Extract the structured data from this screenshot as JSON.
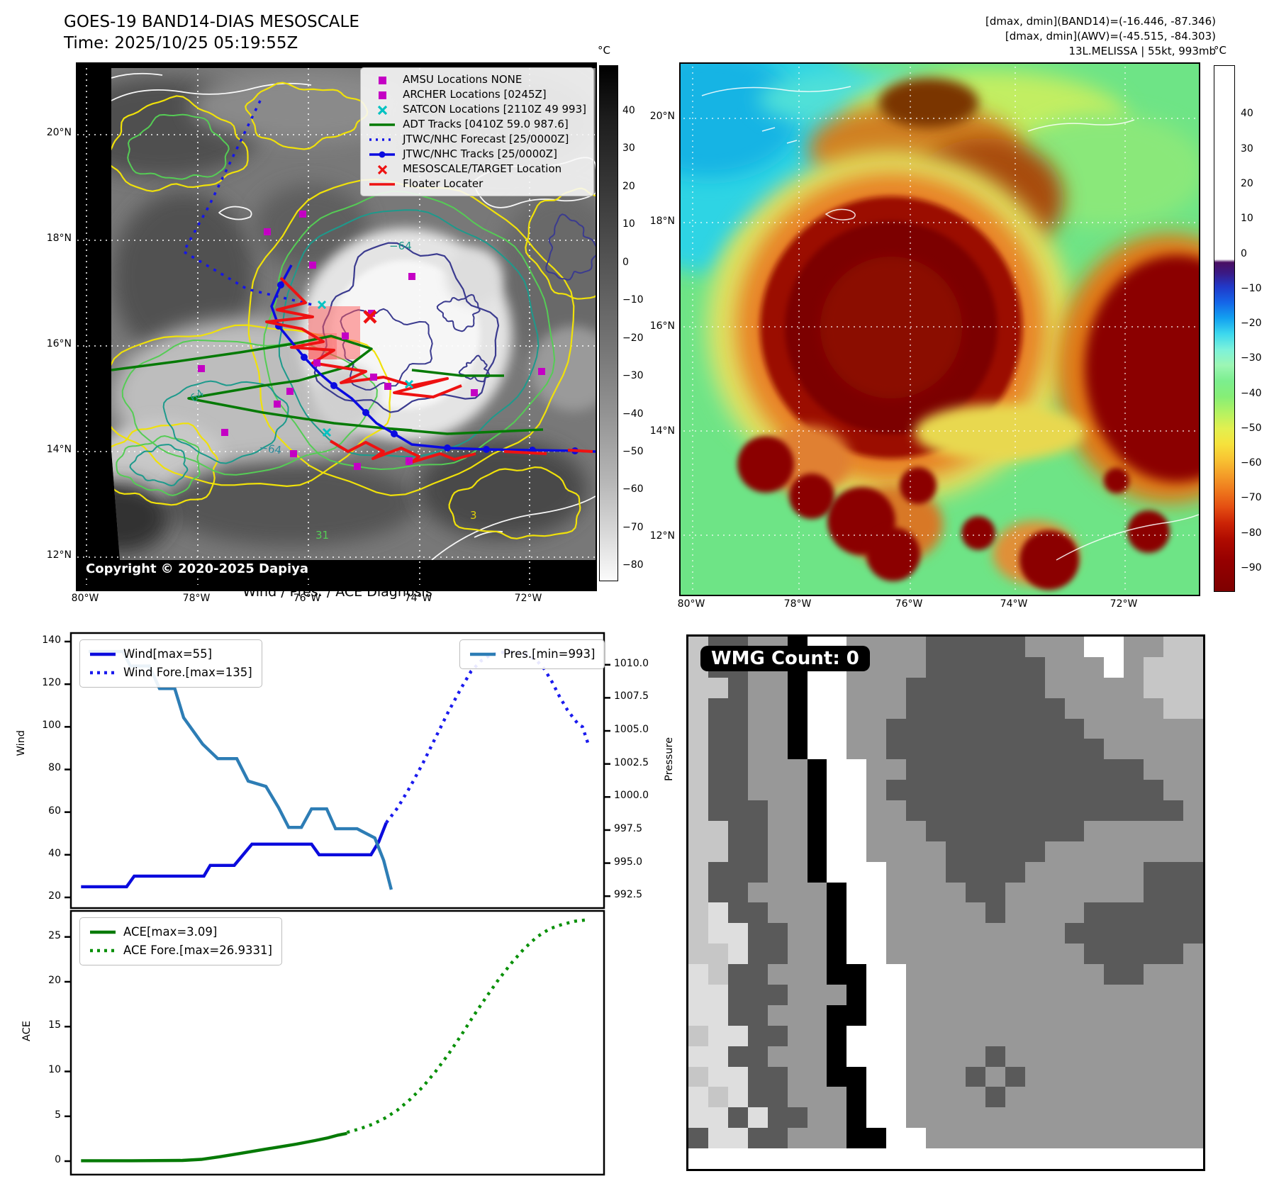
{
  "header": {
    "left_title": "GOES-19 BAND14-DIAS MESOSCALE",
    "left_time": "Time: 2025/10/25 05:19:55Z",
    "right_line1": "[dmax, dmin](BAND14)=(-16.446, -87.346)",
    "right_line2": "[dmax, dmin](AWV)=(-45.515, -84.303)",
    "right_line3": "13L.MELISSA | 55kt, 993mb"
  },
  "band14_map": {
    "x_ticks": [
      "80°W",
      "78°W",
      "76°W",
      "74°W",
      "72°W"
    ],
    "y_ticks": [
      "20°N",
      "18°N",
      "16°N",
      "14°N",
      "12°N"
    ],
    "copyright": "Copyright © 2020-2025 Dapiya",
    "legend": [
      {
        "marker": "square",
        "color": "#c400c4",
        "label": "AMSU Locations NONE"
      },
      {
        "marker": "square",
        "color": "#c400c4",
        "label": "ARCHER Locations [0245Z]"
      },
      {
        "marker": "x",
        "color": "#00c2c2",
        "label": "SATCON Locations [2110Z 49 993]"
      },
      {
        "marker": "line",
        "color": "#067a06",
        "label": "ADT Tracks [0410Z 59.0 987.6]"
      },
      {
        "marker": "dotted",
        "color": "#1515e8",
        "label": "JTWC/NHC Forecast [25/0000Z]"
      },
      {
        "marker": "linedot",
        "color": "#0b0be0",
        "label": "JTWC/NHC Tracks [25/0000Z]"
      },
      {
        "marker": "x",
        "color": "#ee1212",
        "label": "MESOSCALE/TARGET Location"
      },
      {
        "marker": "line",
        "color": "#ee1212",
        "label": "Floater Locater"
      }
    ],
    "contour_labels": [
      {
        "text": "−64",
        "color": "#1d9a8c"
      },
      {
        "text": "64",
        "color": "#1d9a8c"
      },
      {
        "text": "−64",
        "color": "#2e8b9b"
      },
      {
        "text": "31",
        "color": "#55cc55"
      },
      {
        "text": "2",
        "color": "#cc00cc"
      },
      {
        "text": "3",
        "color": "#e0d00a"
      }
    ],
    "colorbar": {
      "title": "°C",
      "ticks": [
        "40",
        "30",
        "20",
        "10",
        "0",
        "−10",
        "−20",
        "−30",
        "−40",
        "−50",
        "−60",
        "−70",
        "−80"
      ]
    }
  },
  "awv_map": {
    "x_ticks": [
      "80°W",
      "78°W",
      "76°W",
      "74°W",
      "72°W"
    ],
    "y_ticks": [
      "20°N",
      "18°N",
      "16°N",
      "14°N",
      "12°N"
    ],
    "colorbar": {
      "title": "°C",
      "ticks": [
        "40",
        "30",
        "20",
        "10",
        "0",
        "−10",
        "−20",
        "−30",
        "−40",
        "−50",
        "−60",
        "−70",
        "−80",
        "−90"
      ]
    }
  },
  "diagnosis_title": "Wind / Pres. / ACE Diagnosis",
  "chart_data": [
    {
      "type": "line",
      "panel": "wind_pressure",
      "title": "Wind / Pres. / ACE Diagnosis",
      "xlim": [
        -0.8,
        41.3
      ],
      "grid": false,
      "left_axis": {
        "label": "Wind",
        "ylim": [
          15,
          144
        ],
        "tick_values": [
          140,
          120,
          100,
          80,
          60,
          40,
          20
        ],
        "tick_labels": [
          "140",
          "120",
          "100",
          "80",
          "60",
          "40",
          "20"
        ]
      },
      "right_axis": {
        "label": "Pressure",
        "ylim": [
          991.6,
          1012.4
        ],
        "tick_values": [
          1010.0,
          1007.5,
          1005.0,
          1002.5,
          1000.0,
          997.5,
          995.0,
          992.5
        ],
        "tick_labels": [
          "1010.0",
          "1007.5",
          "1005.0",
          "1002.5",
          "1000.0",
          "997.5",
          "995.0",
          "992.5"
        ]
      },
      "series": [
        {
          "name": "Wind[max=55]",
          "style": "solid",
          "color": "#0b0bdd",
          "axis": "left",
          "legend": "upper-left",
          "points": [
            [
              0,
              25
            ],
            [
              3.6,
              25
            ],
            [
              4.2,
              30
            ],
            [
              9.7,
              30
            ],
            [
              10.2,
              35
            ],
            [
              12.1,
              35
            ],
            [
              13.5,
              45
            ],
            [
              18.2,
              45
            ],
            [
              18.8,
              40
            ],
            [
              22.9,
              40
            ],
            [
              23.5,
              46
            ],
            [
              24.1,
              55
            ]
          ]
        },
        {
          "name": "Wind Fore.[max=135]",
          "style": "dotted",
          "color": "#1a1aee",
          "axis": "left",
          "legend": "upper-left",
          "points": [
            [
              24.1,
              55
            ],
            [
              25,
              62
            ],
            [
              26,
              72
            ],
            [
              27,
              83
            ],
            [
              28,
              95
            ],
            [
              29,
              107
            ],
            [
              30,
              118
            ],
            [
              30.8,
              126
            ],
            [
              31.6,
              131
            ],
            [
              32.4,
              134
            ],
            [
              33.4,
              135
            ],
            [
              34.4,
              135
            ],
            [
              35.2,
              134
            ],
            [
              36,
              131
            ],
            [
              36.6,
              127
            ],
            [
              37.2,
              121
            ],
            [
              37.8,
              114
            ],
            [
              38.4,
              108
            ],
            [
              38.9,
              104
            ],
            [
              39.3,
              101
            ],
            [
              39.6,
              100
            ],
            [
              40.1,
              91
            ]
          ]
        },
        {
          "name": "Pres.[min=993]",
          "style": "solid",
          "color": "#2d7db5",
          "axis": "right",
          "legend": "upper-right",
          "points": [
            [
              0.6,
              1011
            ],
            [
              3.3,
              1011
            ],
            [
              3.9,
              1009.9
            ],
            [
              5.4,
              1009.9
            ],
            [
              6.2,
              1008.2
            ],
            [
              7.4,
              1008.2
            ],
            [
              8.1,
              1006
            ],
            [
              9.6,
              1004
            ],
            [
              10.8,
              1002.9
            ],
            [
              12.3,
              1002.9
            ],
            [
              13.2,
              1001.2
            ],
            [
              14.6,
              1000.8
            ],
            [
              15.6,
              999.2
            ],
            [
              16.4,
              997.7
            ],
            [
              17.4,
              997.7
            ],
            [
              18.2,
              999.1
            ],
            [
              19.4,
              999.1
            ],
            [
              20.1,
              997.6
            ],
            [
              21.8,
              997.6
            ],
            [
              23.2,
              996.9
            ],
            [
              23.9,
              995.2
            ],
            [
              24.5,
              993
            ]
          ]
        }
      ]
    },
    {
      "type": "line",
      "panel": "ace",
      "xlim": [
        -0.8,
        41.3
      ],
      "grid": false,
      "left_axis": {
        "label": "ACE",
        "ylim": [
          -1.5,
          27.9
        ],
        "tick_values": [
          25,
          20,
          15,
          10,
          5,
          0
        ],
        "tick_labels": [
          "25",
          "20",
          "15",
          "10",
          "5",
          "0"
        ]
      },
      "series": [
        {
          "name": "ACE[max=3.09]",
          "style": "solid",
          "color": "#067a06",
          "axis": "left",
          "legend": "upper-left",
          "points": [
            [
              0,
              0.05
            ],
            [
              4,
              0.05
            ],
            [
              8,
              0.08
            ],
            [
              9.5,
              0.2
            ],
            [
              11,
              0.5
            ],
            [
              12.5,
              0.85
            ],
            [
              14,
              1.2
            ],
            [
              15.5,
              1.55
            ],
            [
              17,
              1.9
            ],
            [
              18.5,
              2.3
            ],
            [
              19.5,
              2.6
            ],
            [
              20.3,
              2.9
            ],
            [
              21,
              3.09
            ]
          ]
        },
        {
          "name": "ACE Fore.[max=26.9331]",
          "style": "dotted",
          "color": "#089008",
          "axis": "left",
          "legend": "upper-left",
          "points": [
            [
              21,
              3.2
            ],
            [
              22,
              3.6
            ],
            [
              23,
              4.1
            ],
            [
              24,
              4.8
            ],
            [
              25,
              5.7
            ],
            [
              26,
              6.9
            ],
            [
              27,
              8.3
            ],
            [
              28,
              10
            ],
            [
              29,
              11.9
            ],
            [
              30,
              14
            ],
            [
              31,
              16.2
            ],
            [
              32,
              18.3
            ],
            [
              33,
              20.3
            ],
            [
              34,
              22.1
            ],
            [
              35,
              23.7
            ],
            [
              36,
              25
            ],
            [
              37,
              25.9
            ],
            [
              38,
              26.4
            ],
            [
              39,
              26.75
            ],
            [
              40.1,
              26.93
            ]
          ]
        }
      ]
    }
  ],
  "wmg": {
    "label": "WMG Count: 0",
    "palette": {
      "k": "#000000",
      "w": "#ffffff",
      "l": "#c6c6c6",
      "e": "#dedede",
      "m": "#989898",
      "d": "#5a5a5a"
    },
    "rows": [
      "lddmmkwwmmmmdddddmmmwwmmll",
      "lddmmkwwmmmmddddddmmmwmlll",
      "lldmmkwwmmmdddddddmmmmmlll",
      "lddmmkwwmmmddddddddmmmmmll",
      "lddmmkwwmmddddddddddmmmmmm",
      "lddmmkwwmmdddddddddddmmmmm",
      "lddmmmkwwmmddddddddddddmmm",
      "lddmmmkwwmddddddddddddddmm",
      "ldddmmkwwmmddddddddddddddm",
      "llddmmkwwmmmddddddddmmmmmm",
      "llddmmkwwmmmmdddddmmmmmmmm",
      "ldddmmkwwwmmmddddmmmmmmddd",
      "lddmmmmkwwmmmmddmmmmmmmddd",
      "leddmmmkwwmmmmmdmmmmdddddd",
      "leeddmmkwwmmmmmmmmmddddddd",
      "lleddmmkwwmmmmmmmmmmdddddm",
      "elddmmmkkwwmmmmmmmmmmddmmm",
      "eedddmmmkwwmmmmmmmmmmmmmmm",
      "eeddmmmkkwwmmmmmmmmmmmmmmm",
      "leeddmmkwwwmmmmmmmmmmmmmmm",
      "eeddmmmkwwwmmmmdmmmmmmmmmm",
      "leeddmmkkwwmmmdmdmmmmmmmmm",
      "eleddmmmkwwmmmmdmmmmmmmmmm",
      "eededdmmkwwmmmmmmmmmmmmmmm",
      "deeddmmmkkwwmmmmmmmmmmmmmm",
      "wwwwwwwwwwwwwwwwwwwwwwwwww"
    ]
  }
}
